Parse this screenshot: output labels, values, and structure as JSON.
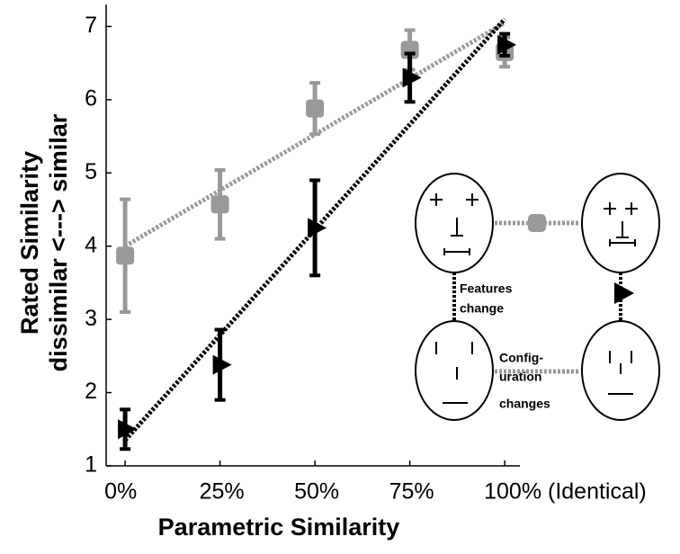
{
  "chart_data": {
    "type": "errorbar",
    "x_label": "Parametric Similarity",
    "y_label": [
      "Rated Similarity",
      "dissimilar <---> similar"
    ],
    "xlim": [
      -5,
      104
    ],
    "ylim": [
      1,
      7.3
    ],
    "xticks": [
      {
        "value": 0,
        "label": "0%"
      },
      {
        "value": 25,
        "label": "25%"
      },
      {
        "value": 50,
        "label": "50%"
      },
      {
        "value": 75,
        "label": "75%"
      },
      {
        "value": 100,
        "label": "100% (Identical)"
      }
    ],
    "yticks": [
      1,
      2,
      3,
      4,
      5,
      6,
      7
    ],
    "series": [
      {
        "color": "#999999",
        "marker": "square",
        "x": [
          0,
          25,
          50,
          75,
          100
        ],
        "values": [
          3.87,
          4.57,
          5.88,
          6.68,
          6.65
        ],
        "errors": [
          0.77,
          0.47,
          0.35,
          0.27,
          0.2
        ],
        "fit": {
          "x": [
            0,
            100
          ],
          "values": [
            4.0,
            7.05
          ]
        }
      },
      {
        "color": "#000000",
        "marker": "triangle",
        "x": [
          0,
          25,
          50,
          75,
          100
        ],
        "values": [
          1.5,
          2.38,
          4.25,
          6.3,
          6.75
        ],
        "errors": [
          0.27,
          0.48,
          0.65,
          0.33,
          0.15
        ],
        "fit": {
          "x": [
            0,
            100
          ],
          "values": [
            1.35,
            7.1
          ]
        }
      }
    ],
    "inset": {
      "features_label": [
        "Features",
        "change"
      ],
      "configuration_label": [
        "Config-",
        "uration",
        "changes"
      ]
    }
  }
}
